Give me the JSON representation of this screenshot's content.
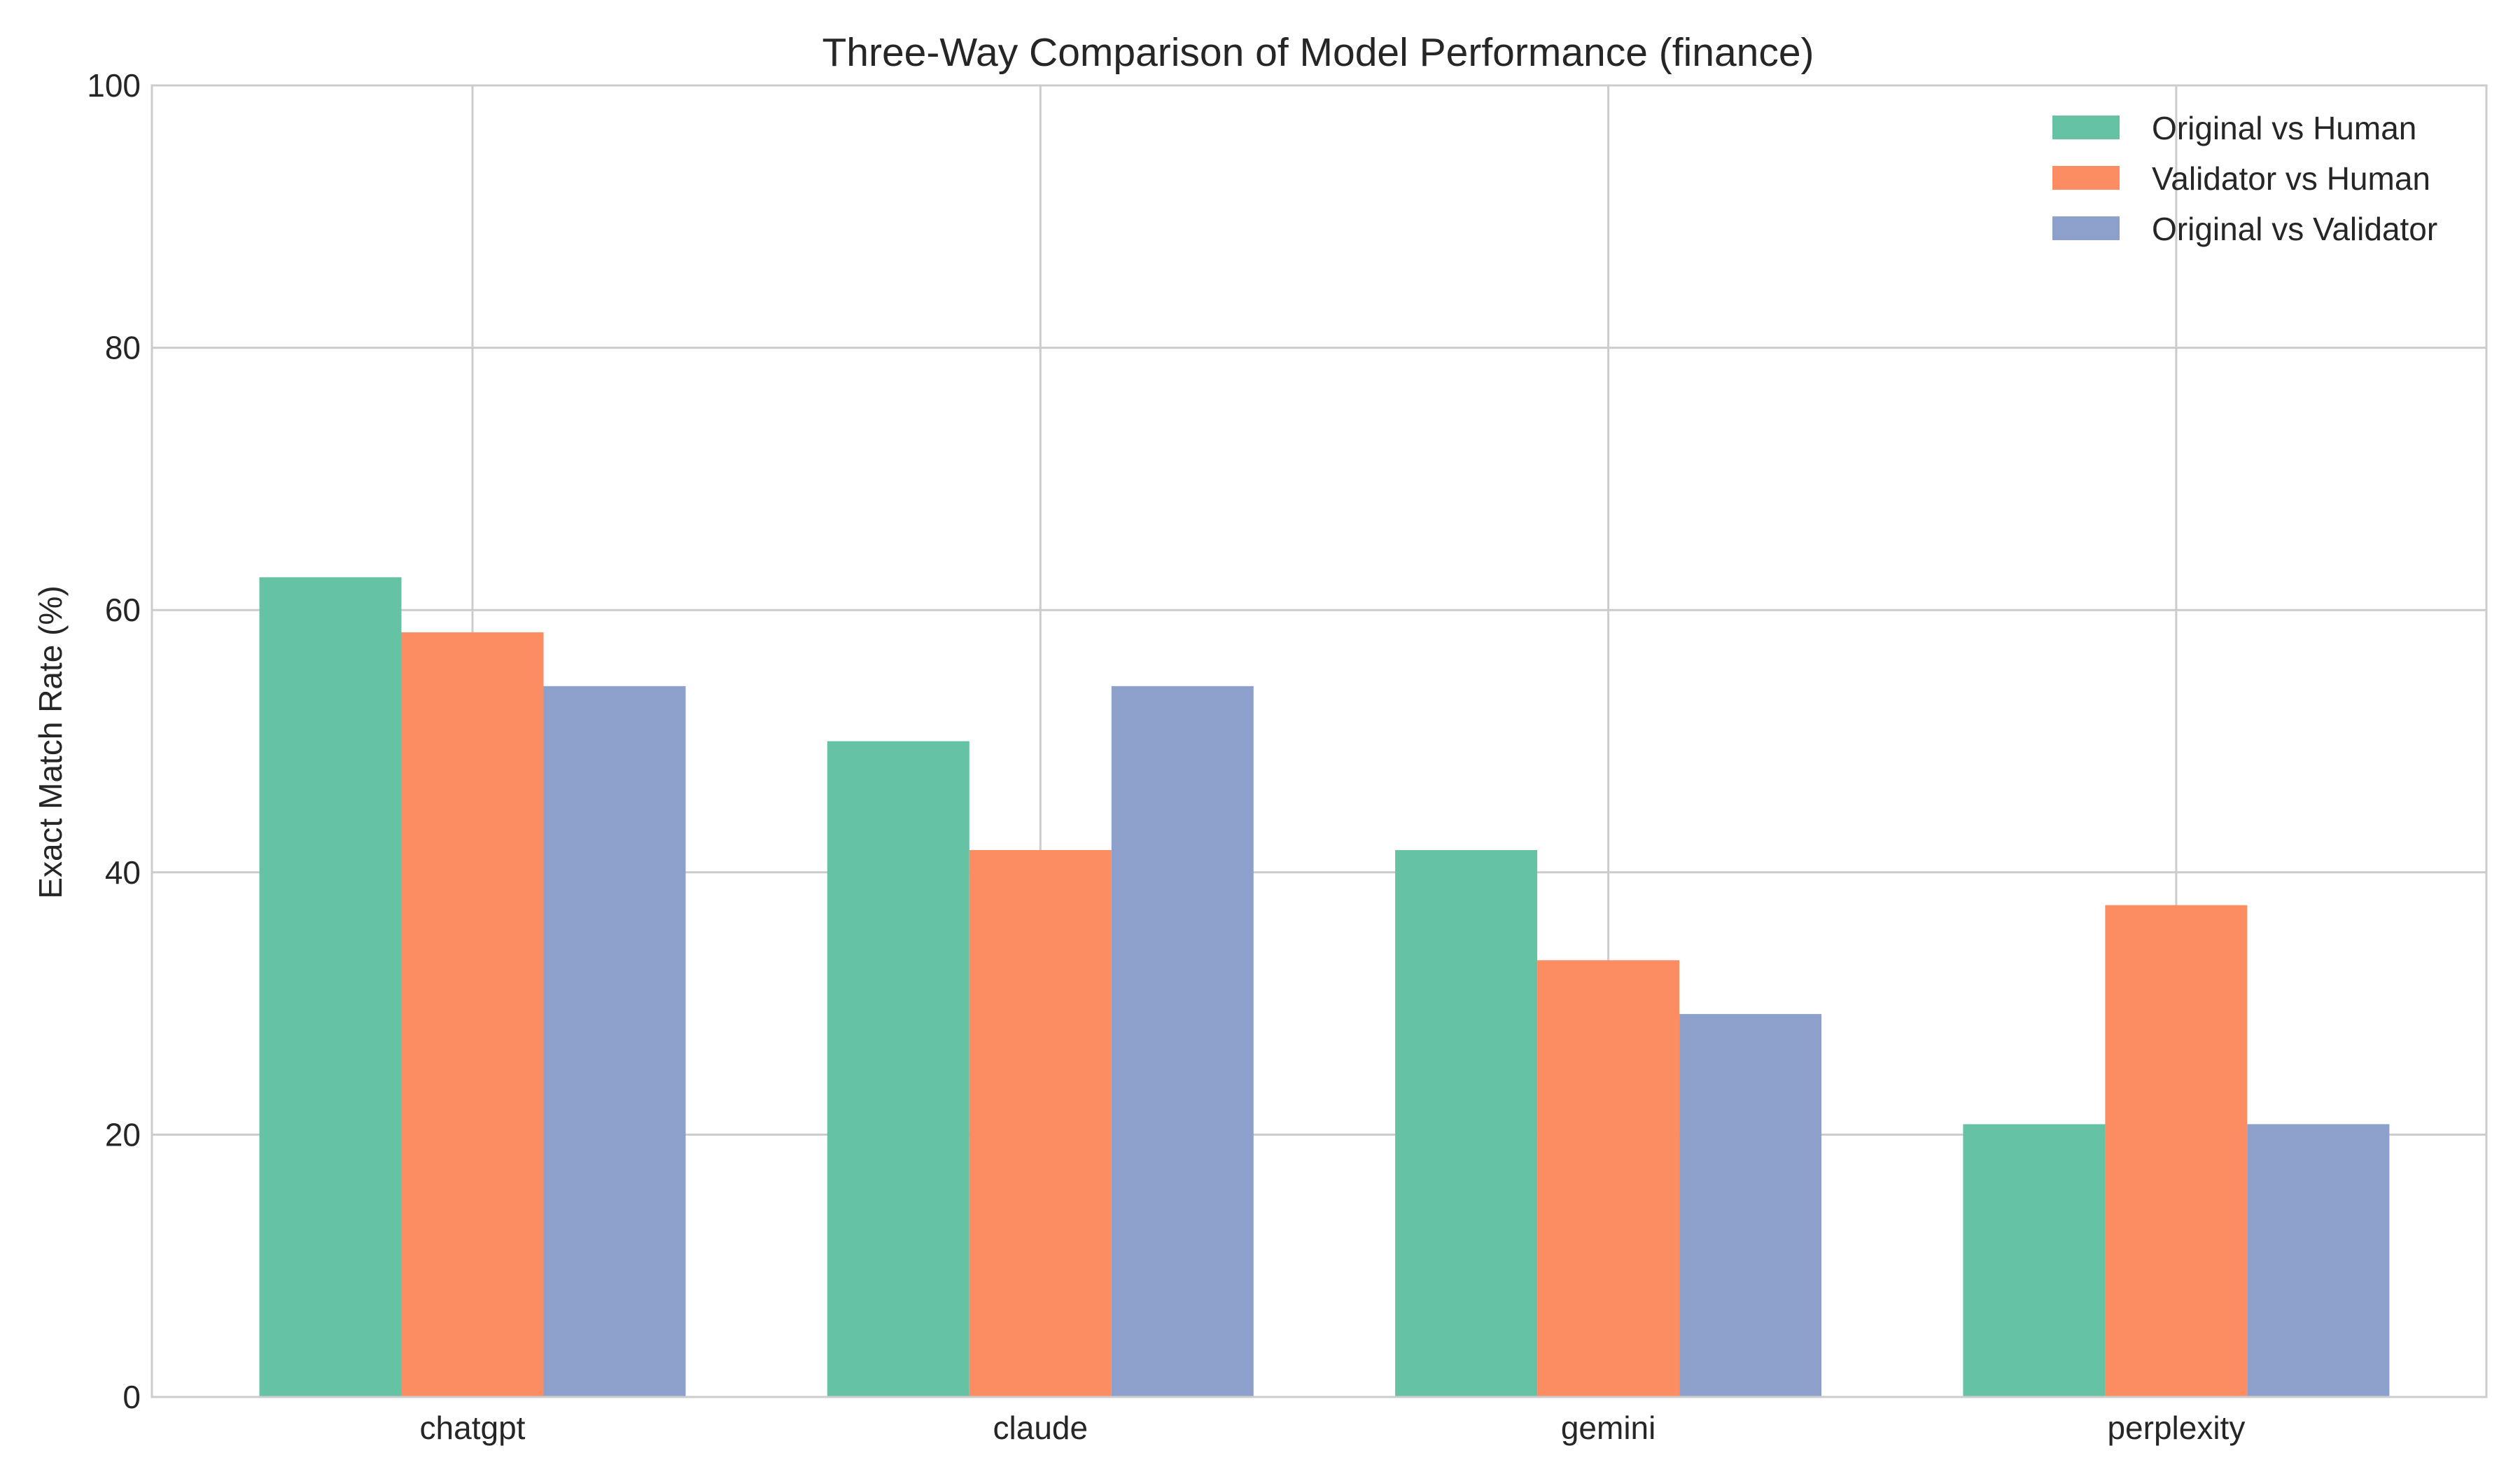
{
  "chart_data": {
    "type": "bar",
    "title": "Three-Way Comparison of Model Performance (finance)",
    "xlabel": "",
    "ylabel": "Exact Match Rate (%)",
    "ylim": [
      0,
      100
    ],
    "yticks": [
      0,
      20,
      40,
      60,
      80,
      100
    ],
    "categories": [
      "chatgpt",
      "claude",
      "gemini",
      "perplexity"
    ],
    "series": [
      {
        "name": "Original vs Human",
        "color": "#66c2a5",
        "values": [
          62.5,
          50.0,
          41.7,
          20.8
        ]
      },
      {
        "name": "Validator vs Human",
        "color": "#fc8d62",
        "values": [
          58.3,
          41.7,
          33.3,
          37.5
        ]
      },
      {
        "name": "Original vs Validator",
        "color": "#8da0cb",
        "values": [
          54.2,
          54.2,
          29.2,
          20.8
        ]
      }
    ],
    "grid": true,
    "legend_position": "top-right"
  }
}
